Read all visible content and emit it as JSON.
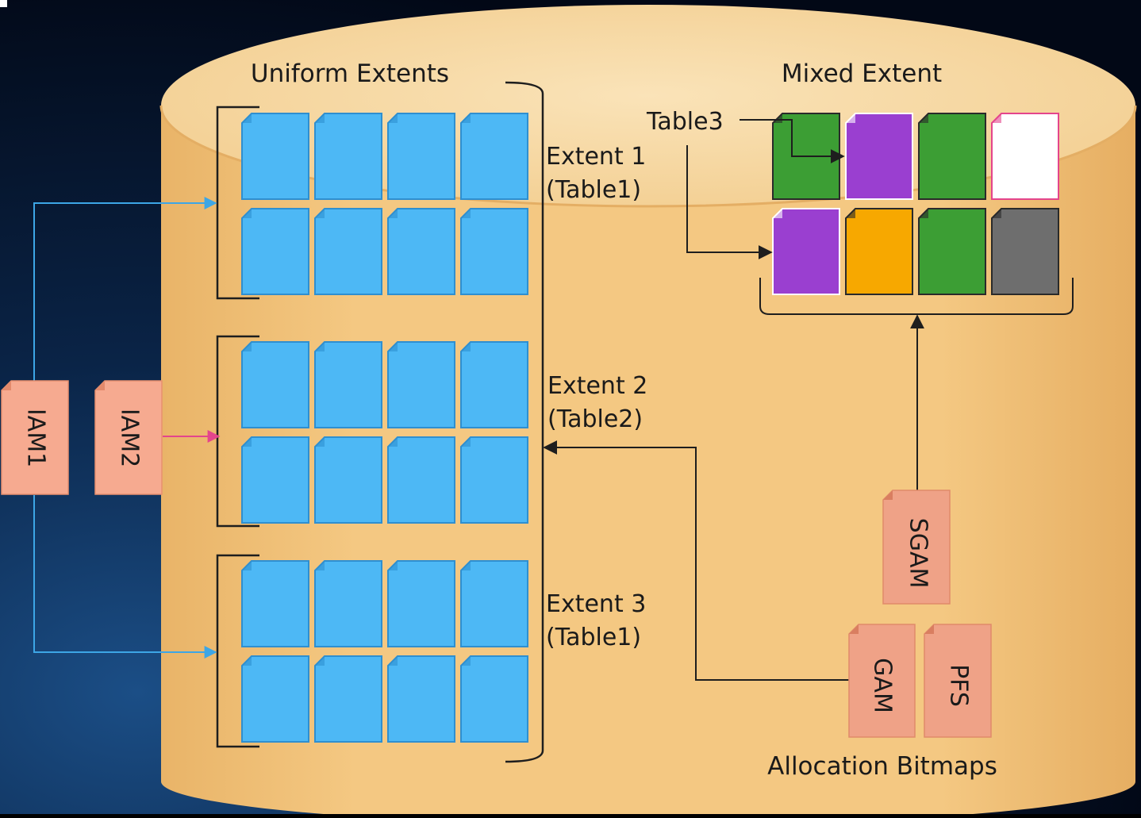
{
  "sections": {
    "uniform_title": "Uniform Extents",
    "mixed_title": "Mixed Extent",
    "allocation_title": "Allocation Bitmaps"
  },
  "extents": [
    {
      "name": "Extent 1",
      "table": "(Table1)"
    },
    {
      "name": "Extent 2",
      "table": "(Table2)"
    },
    {
      "name": "Extent 3",
      "table": "(Table1)"
    }
  ],
  "mixed_extent": {
    "label": "Table3",
    "pages": [
      {
        "color": "#3c9e34"
      },
      {
        "color": "#9a3fd0"
      },
      {
        "color": "#3c9e34"
      },
      {
        "color": "#ffffff"
      },
      {
        "color": "#9a3fd0"
      },
      {
        "color": "#f7a800"
      },
      {
        "color": "#3c9e34"
      },
      {
        "color": "#6e6e6e"
      }
    ]
  },
  "iam": [
    "IAM1",
    "IAM2"
  ],
  "bitmaps": [
    "SGAM",
    "GAM",
    "PFS"
  ],
  "colors": {
    "background": "#020a1c",
    "cylinder": "#f2c279",
    "cylinder_top": "#f7d8a2",
    "page_blue": "#4db8f5",
    "iam_fill": "#f6aa90",
    "bitmap_fill": "#efa287",
    "link_blue": "#3da6e6",
    "link_pink": "#e4458c",
    "link_dark": "#222222"
  }
}
